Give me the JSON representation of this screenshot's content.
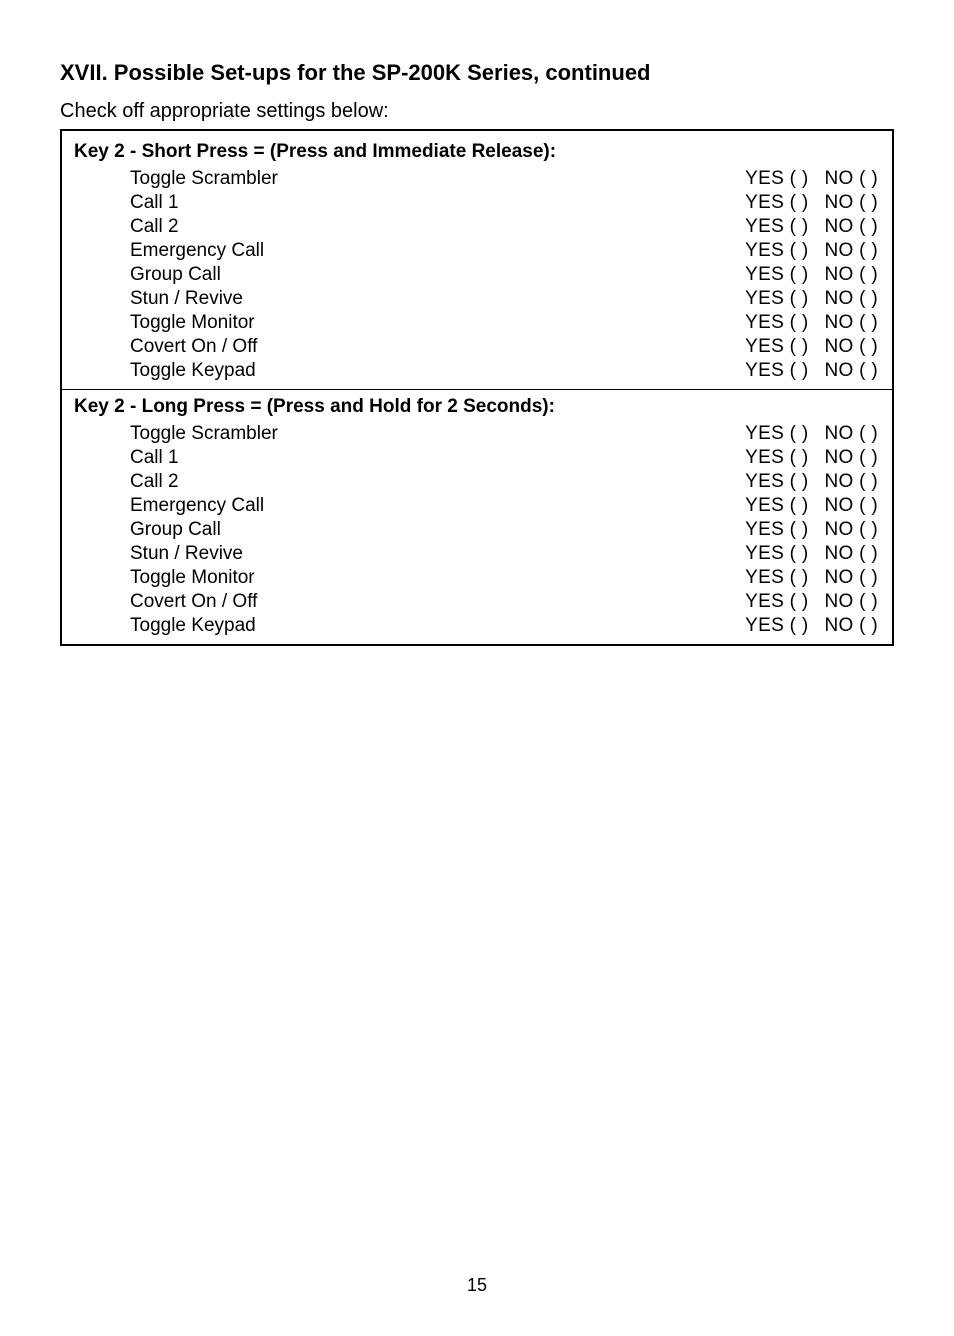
{
  "heading": "XVII.  Possible Set-ups for the SP-200K Series, continued",
  "intro": "Check off appropriate settings below:",
  "section1": {
    "header": "Key 2 - Short Press = (Press and Immediate Release):",
    "items": {
      "i0": {
        "label": "Toggle Scrambler",
        "yes": "YES (   )",
        "no": "NO (   )"
      },
      "i1": {
        "label": "Call 1",
        "yes": "YES (   )",
        "no": "NO (   )"
      },
      "i2": {
        "label": "Call 2",
        "yes": "YES (   )",
        "no": "NO (   )"
      },
      "i3": {
        "label": "Emergency Call",
        "yes": "YES (   )",
        "no": "NO (   )"
      },
      "i4": {
        "label": "Group Call",
        "yes": "YES (   )",
        "no": "NO (   )"
      },
      "i5": {
        "label": "Stun / Revive",
        "yes": "YES (   )",
        "no": "NO (   )"
      },
      "i6": {
        "label": "Toggle Monitor",
        "yes": "YES (   )",
        "no": "NO (   )"
      },
      "i7": {
        "label": "Covert On / Off",
        "yes": "YES (   )",
        "no": "NO (   )"
      },
      "i8": {
        "label": "Toggle Keypad",
        "yes": "YES (   )",
        "no": "NO (   )"
      }
    }
  },
  "section2": {
    "header": "Key 2 - Long Press = (Press and Hold for 2 Seconds):",
    "items": {
      "i0": {
        "label": "Toggle Scrambler",
        "yes": "YES (   )",
        "no": "NO (   )"
      },
      "i1": {
        "label": "Call 1",
        "yes": "YES (   )",
        "no": "NO (   )"
      },
      "i2": {
        "label": "Call 2",
        "yes": "YES (   )",
        "no": "NO (   )"
      },
      "i3": {
        "label": "Emergency Call",
        "yes": "YES (   )",
        "no": "NO (   )"
      },
      "i4": {
        "label": "Group Call",
        "yes": "YES (   )",
        "no": "NO (   )"
      },
      "i5": {
        "label": "Stun / Revive",
        "yes": "YES (   )",
        "no": "NO (   )"
      },
      "i6": {
        "label": "Toggle Monitor",
        "yes": "YES (   )",
        "no": "NO (   )"
      },
      "i7": {
        "label": "Covert On / Off",
        "yes": "YES (   )",
        "no": "NO (   )"
      },
      "i8": {
        "label": "Toggle Keypad",
        "yes": "YES (   )",
        "no": "NO (   )"
      }
    }
  },
  "page_number": "15"
}
